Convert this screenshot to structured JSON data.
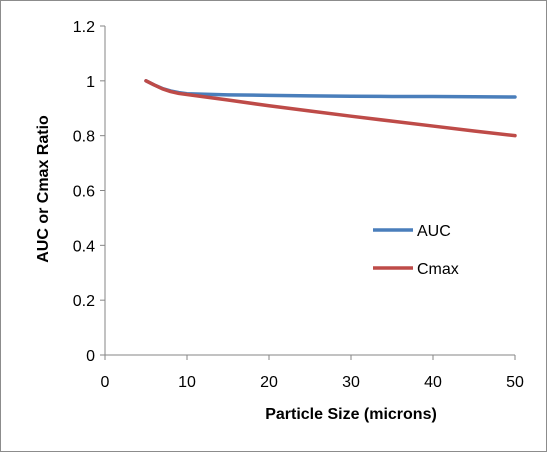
{
  "chart_data": {
    "type": "line",
    "title": "",
    "xlabel": "Particle Size (microns)",
    "ylabel": "AUC or Cmax Ratio",
    "xlim": [
      0,
      50
    ],
    "ylim": [
      0,
      1.2
    ],
    "x_ticks": [
      "0",
      "10",
      "20",
      "30",
      "40",
      "50"
    ],
    "y_ticks": [
      "0",
      "0.2",
      "0.4",
      "0.6",
      "0.8",
      "1",
      "1.2"
    ],
    "grid": false,
    "legend_position": "right",
    "series": [
      {
        "name": "AUC",
        "color": "#4a7ebb",
        "x": [
          5,
          6,
          7,
          8,
          9,
          10,
          15,
          20,
          25,
          30,
          35,
          40,
          45,
          50
        ],
        "y": [
          1.0,
          0.985,
          0.972,
          0.963,
          0.957,
          0.953,
          0.949,
          0.947,
          0.945,
          0.944,
          0.943,
          0.943,
          0.942,
          0.941
        ]
      },
      {
        "name": "Cmax",
        "color": "#be4b48",
        "x": [
          5,
          6,
          7,
          8,
          9,
          10,
          15,
          20,
          25,
          30,
          35,
          40,
          45,
          50
        ],
        "y": [
          1.0,
          0.985,
          0.971,
          0.961,
          0.954,
          0.95,
          0.93,
          0.909,
          0.89,
          0.871,
          0.853,
          0.835,
          0.817,
          0.8
        ]
      }
    ]
  }
}
